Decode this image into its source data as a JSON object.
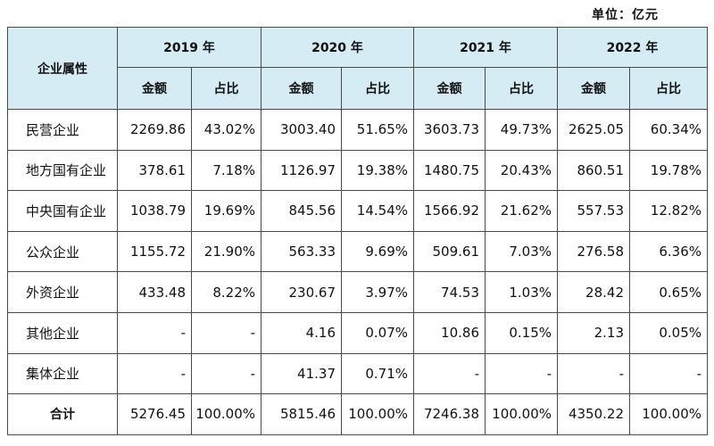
{
  "unit_label": "单位：亿元",
  "header": {
    "attr_label": "企业属性",
    "years": [
      "2019 年",
      "2020 年",
      "2021 年",
      "2022 年"
    ],
    "amount_label": "金额",
    "share_label": "占比"
  },
  "rows": [
    {
      "name": "民营企业",
      "cells": [
        "2269.86",
        "43.02%",
        "3003.40",
        "51.65%",
        "3603.73",
        "49.73%",
        "2625.05",
        "60.34%"
      ]
    },
    {
      "name": "地方国有企业",
      "cells": [
        "378.61",
        "7.18%",
        "1126.97",
        "19.38%",
        "1480.75",
        "20.43%",
        "860.51",
        "19.78%"
      ]
    },
    {
      "name": "中央国有企业",
      "cells": [
        "1038.79",
        "19.69%",
        "845.56",
        "14.54%",
        "1566.92",
        "21.62%",
        "557.53",
        "12.82%"
      ]
    },
    {
      "name": "公众企业",
      "cells": [
        "1155.72",
        "21.90%",
        "563.33",
        "9.69%",
        "509.61",
        "7.03%",
        "276.58",
        "6.36%"
      ]
    },
    {
      "name": "外资企业",
      "cells": [
        "433.48",
        "8.22%",
        "230.67",
        "3.97%",
        "74.53",
        "1.03%",
        "28.42",
        "0.65%"
      ]
    },
    {
      "name": "其他企业",
      "cells": [
        "-",
        "-",
        "4.16",
        "0.07%",
        "10.86",
        "0.15%",
        "2.13",
        "0.05%"
      ]
    },
    {
      "name": "集体企业",
      "cells": [
        "-",
        "-",
        "41.37",
        "0.71%",
        "-",
        "-",
        "-",
        "-"
      ]
    }
  ],
  "total": {
    "name": "合计",
    "cells": [
      "5276.45",
      "100.00%",
      "5815.46",
      "100.00%",
      "7246.38",
      "100.00%",
      "4350.22",
      "100.00%"
    ]
  },
  "colors": {
    "header_bg": "#d6ecf4",
    "border": "#4a4a4a"
  }
}
